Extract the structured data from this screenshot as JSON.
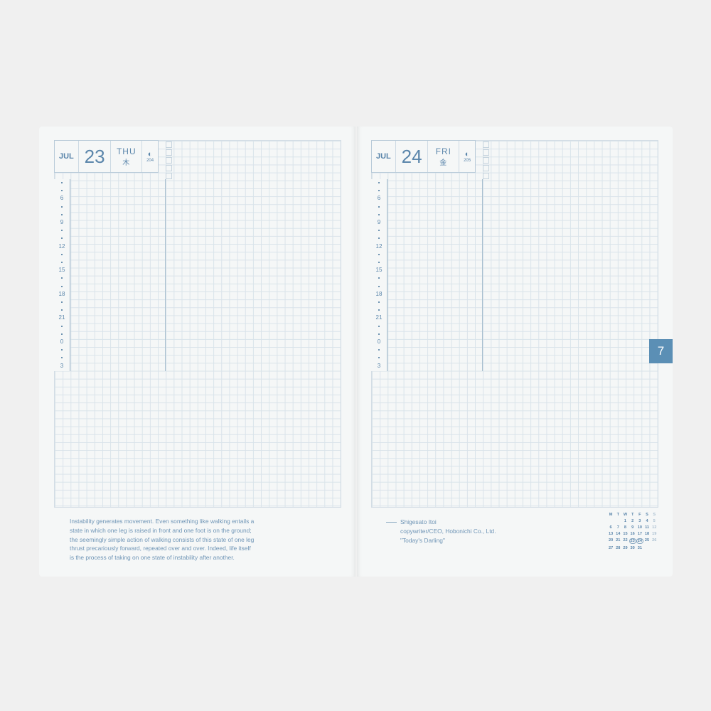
{
  "left": {
    "month": "JUL",
    "day": "23",
    "weekday": "THU",
    "weekday_jp": "木",
    "moon_icon": "half-moon-icon",
    "day_of_year": "204",
    "quote": [
      "Instability generates movement. Even something like walking entails a",
      "state in which one leg is raised in front and one foot is on the ground;",
      "the seemingly simple action of walking consists of this state of one leg",
      "thrust precariously forward, repeated over and over. Indeed, life itself",
      "is the process of taking on one state of instability after another."
    ]
  },
  "right": {
    "month": "JUL",
    "day": "24",
    "weekday": "FRI",
    "weekday_jp": "金",
    "moon_icon": "half-moon-icon",
    "day_of_year": "205",
    "credit": [
      "Shigesato Itoi",
      "copywriter/CEO, Hobonichi Co., Ltd.",
      "\"Today's Darling\""
    ]
  },
  "hours": [
    "6",
    "9",
    "12",
    "15",
    "18",
    "21",
    "0",
    "3"
  ],
  "calendar": {
    "headers": [
      "M",
      "T",
      "W",
      "T",
      "F",
      "S",
      "S"
    ],
    "weeks": [
      [
        "",
        "",
        "1",
        "2",
        "3",
        "4",
        "5"
      ],
      [
        "6",
        "7",
        "8",
        "9",
        "10",
        "11",
        "12"
      ],
      [
        "13",
        "14",
        "15",
        "16",
        "17",
        "18",
        "19"
      ],
      [
        "20",
        "21",
        "22",
        "23",
        "24",
        "25",
        "26"
      ],
      [
        "27",
        "28",
        "29",
        "30",
        "31",
        "",
        ""
      ]
    ],
    "highlighted": [
      "23",
      "24"
    ]
  },
  "month_tab": "7",
  "colors": {
    "accent": "#5b8fb5",
    "text": "#5b86ab",
    "grid": "#d9e3ea"
  }
}
